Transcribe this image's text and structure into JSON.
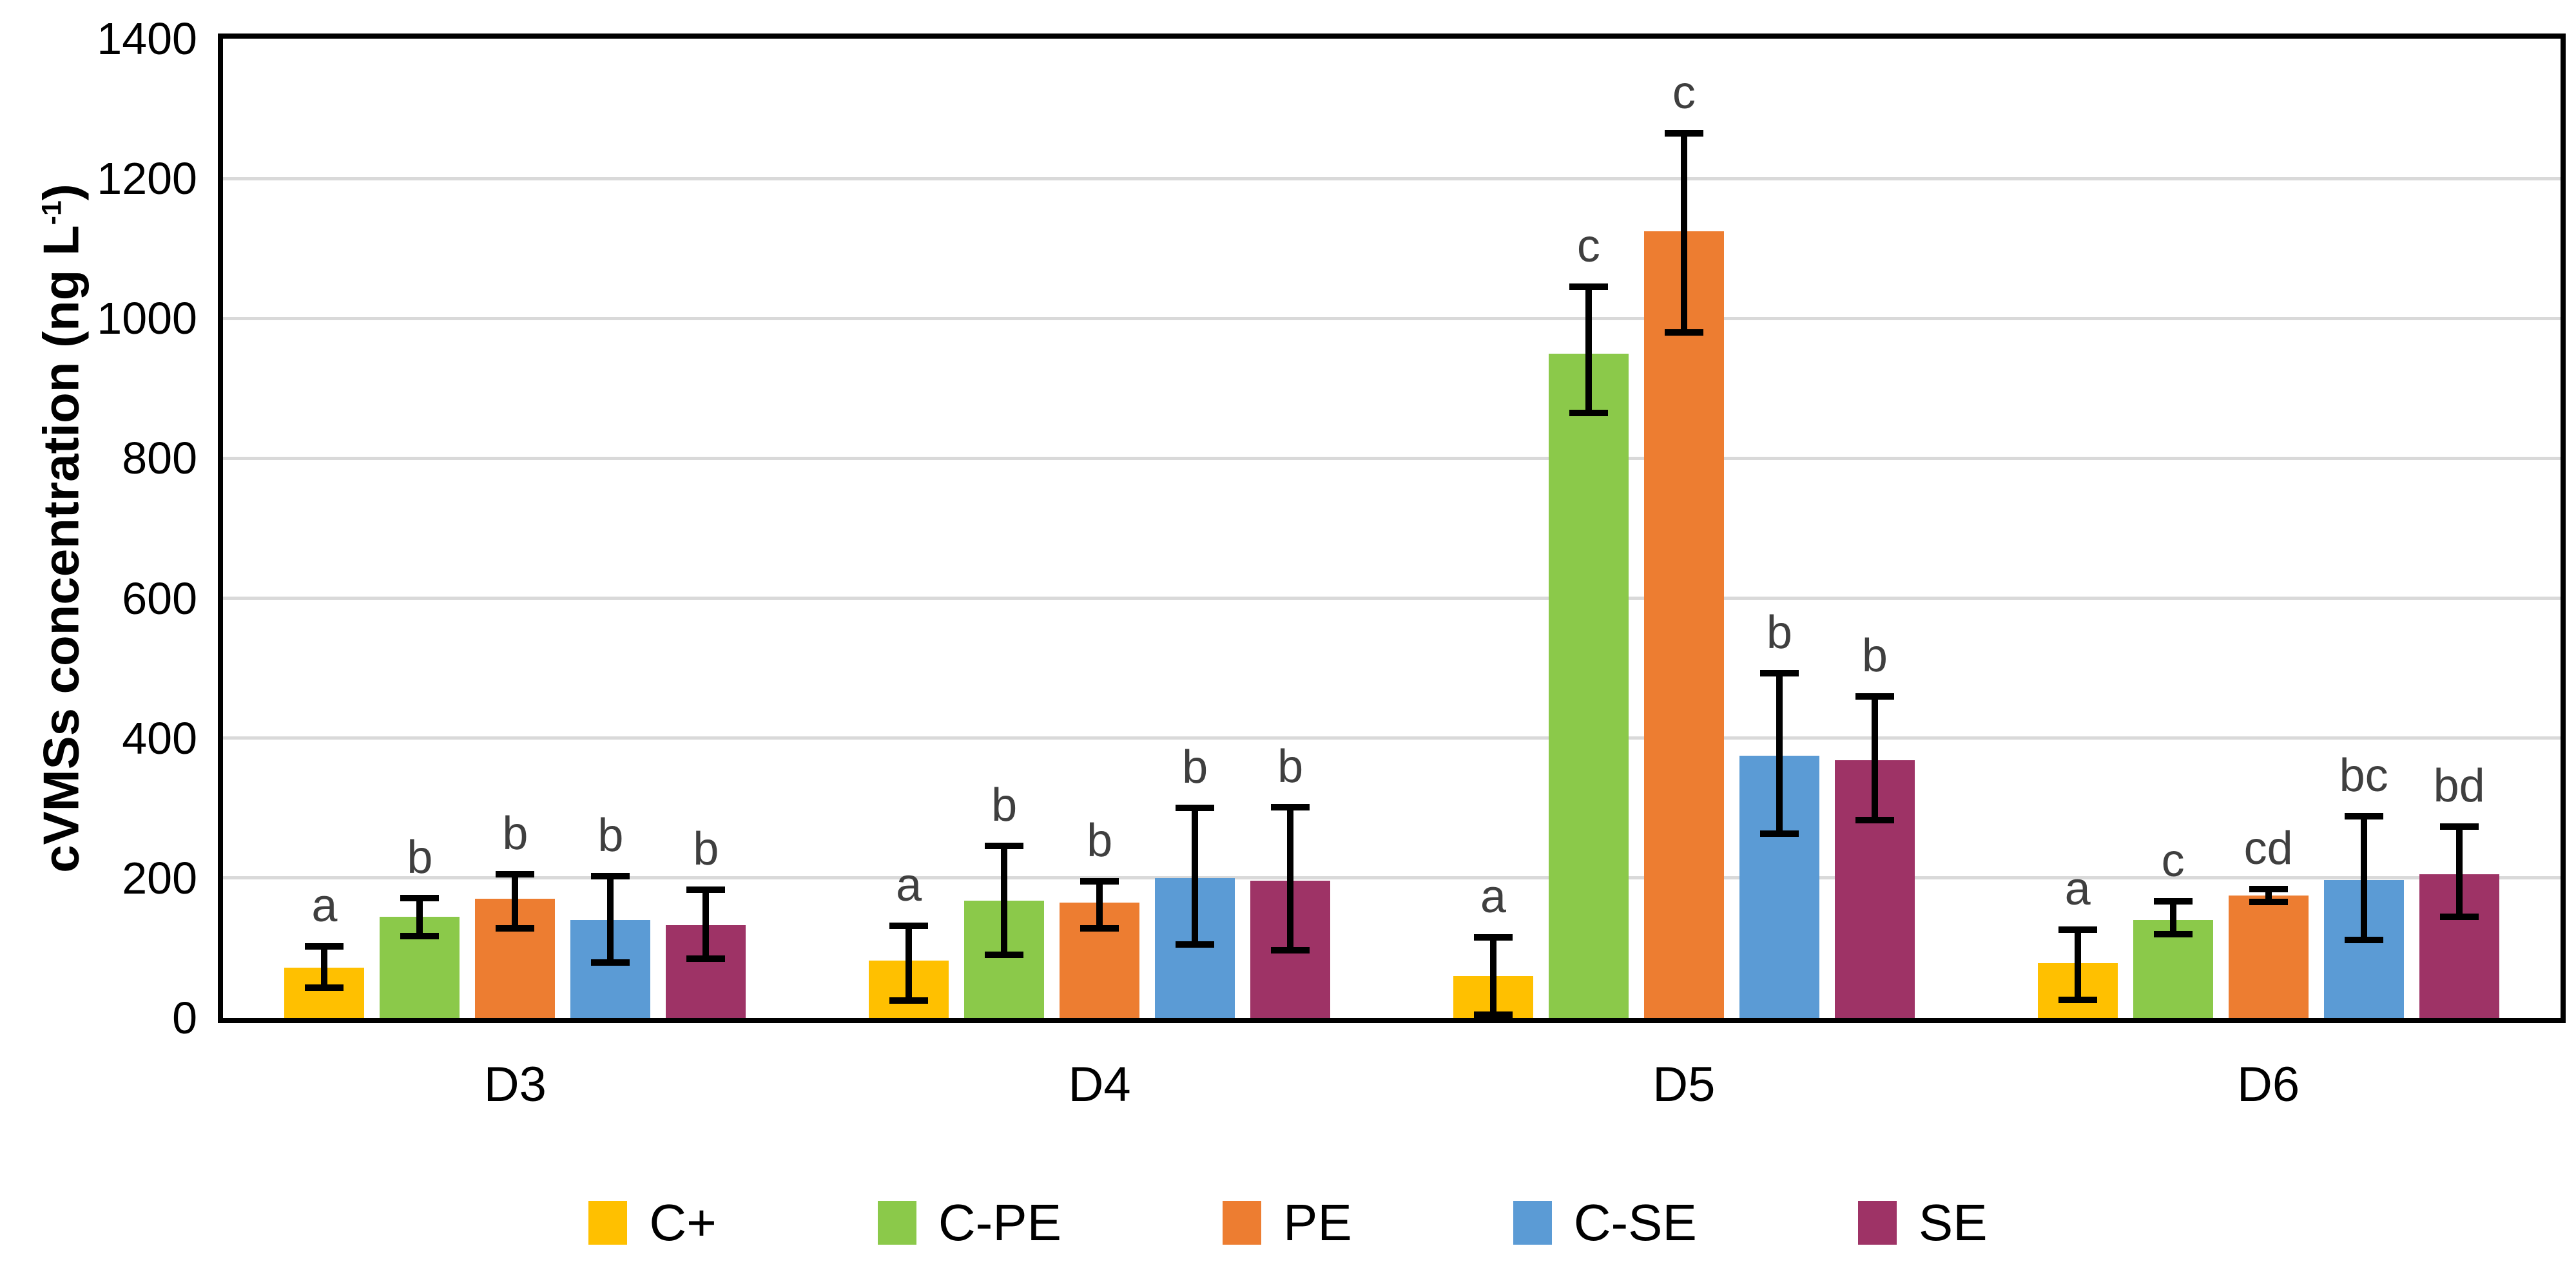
{
  "chart_data": {
    "type": "bar",
    "title": "",
    "ylabel_prefix": "cVMSs concentration (ng L",
    "ylabel_sup": "-1",
    "ylabel_suffix": ")",
    "categories": [
      "D3",
      "D4",
      "D5",
      "D6"
    ],
    "y_axis": {
      "min": 0,
      "max": 1400,
      "tick_step": 200,
      "ticks": [
        "0",
        "200",
        "400",
        "600",
        "800",
        "1000",
        "1200",
        "1400"
      ],
      "grid": true,
      "gridline_color": "#d9d9d9",
      "frame_color": "#000000"
    },
    "legend_position": "bottom",
    "error_bar_color": "#000000",
    "series": [
      {
        "name": "C+",
        "color": "#FFC000",
        "values": [
          72,
          82,
          60,
          78
        ],
        "err_up": [
          30,
          50,
          55,
          48
        ],
        "err_down": [
          29,
          57,
          55,
          52
        ],
        "letters": [
          "a",
          "a",
          "a",
          "a"
        ]
      },
      {
        "name": "C-PE",
        "color": "#8BC94A",
        "values": [
          145,
          168,
          950,
          140
        ],
        "err_up": [
          26,
          78,
          95,
          27
        ],
        "err_down": [
          28,
          78,
          85,
          20
        ],
        "letters": [
          "b",
          "b",
          "c",
          "c"
        ]
      },
      {
        "name": "PE",
        "color": "#ED7D31",
        "values": [
          170,
          165,
          1125,
          175
        ],
        "err_up": [
          35,
          30,
          140,
          9
        ],
        "err_down": [
          42,
          37,
          145,
          9
        ],
        "letters": [
          "b",
          "b",
          "c",
          "cd"
        ]
      },
      {
        "name": "C-SE",
        "color": "#5B9BD5",
        "values": [
          140,
          200,
          375,
          197
        ],
        "err_up": [
          63,
          100,
          118,
          91
        ],
        "err_down": [
          61,
          95,
          112,
          86
        ],
        "letters": [
          "b",
          "b",
          "b",
          "bc"
        ]
      },
      {
        "name": "SE",
        "color": "#9E3366",
        "values": [
          133,
          196,
          368,
          205
        ],
        "err_up": [
          50,
          105,
          92,
          69
        ],
        "err_down": [
          48,
          99,
          85,
          60
        ],
        "letters": [
          "b",
          "b",
          "b",
          "bd"
        ]
      }
    ]
  }
}
